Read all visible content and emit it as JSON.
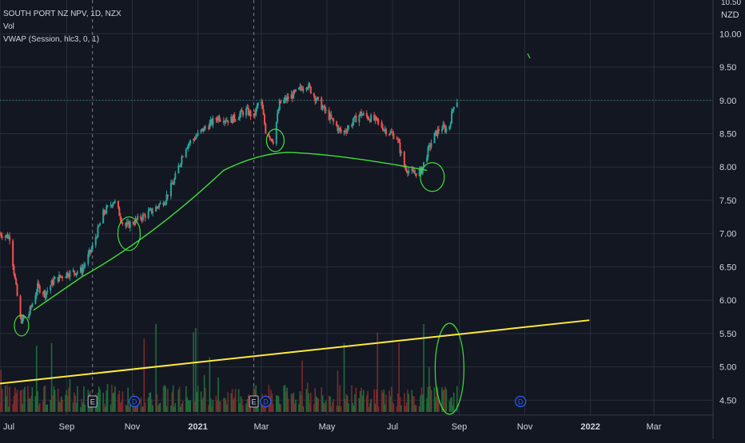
{
  "legend": {
    "symbol_line": "SOUTH PORT NZ NPV, 1D, NZX",
    "vol_label": "Vol",
    "vwap_label": "VWAP (Session, hlc3, 0, 1)"
  },
  "currency_label": "NZD",
  "currency_top_clip": "10.50",
  "colors": {
    "background": "#131722",
    "grid": "#2a2e39",
    "up": "#26a69a",
    "down": "#ef5350",
    "vol_up": "#1e6b3a",
    "vol_down": "#7a2a2a",
    "drawing": "#3fe03a",
    "trendline": "#ffeb3b",
    "text": "#d1d4dc",
    "price_line": "#26a69a",
    "dividend_badge": "#2962ff"
  },
  "chart_data": {
    "type": "candlestick",
    "y_ticks": [
      "10.00",
      "9.50",
      "9.00",
      "8.50",
      "8.00",
      "7.50",
      "7.00",
      "6.50",
      "6.00",
      "5.50",
      "5.00",
      "4.50"
    ],
    "ylim": [
      4.45,
      10.5
    ],
    "x_ticks": [
      "Jul",
      "Sep",
      "Nov",
      "2021",
      "Mar",
      "May",
      "Jul",
      "Sep",
      "Nov",
      "2022",
      "Mar"
    ],
    "bold_ticks": [
      "2021",
      "2022"
    ],
    "price_anchors": [
      [
        "2020-07-01",
        7.0
      ],
      [
        "2020-07-10",
        6.95
      ],
      [
        "2020-07-15",
        6.3
      ],
      [
        "2020-07-20",
        5.7
      ],
      [
        "2020-07-27",
        5.75
      ],
      [
        "2020-08-05",
        6.2
      ],
      [
        "2020-08-12",
        6.1
      ],
      [
        "2020-08-20",
        6.3
      ],
      [
        "2020-09-01",
        6.4
      ],
      [
        "2020-09-15",
        6.45
      ],
      [
        "2020-09-25",
        6.8
      ],
      [
        "2020-10-05",
        7.3
      ],
      [
        "2020-10-15",
        7.5
      ],
      [
        "2020-10-25",
        7.1
      ],
      [
        "2020-11-05",
        7.2
      ],
      [
        "2020-11-20",
        7.35
      ],
      [
        "2020-12-01",
        7.5
      ],
      [
        "2020-12-10",
        7.8
      ],
      [
        "2020-12-20",
        8.3
      ],
      [
        "2021-01-05",
        8.55
      ],
      [
        "2021-01-20",
        8.75
      ],
      [
        "2021-01-31",
        8.7
      ],
      [
        "2021-02-15",
        8.85
      ],
      [
        "2021-02-22",
        8.75
      ],
      [
        "2021-02-28",
        9.05
      ],
      [
        "2021-03-05",
        8.55
      ],
      [
        "2021-03-12",
        8.4
      ],
      [
        "2021-03-18",
        8.95
      ],
      [
        "2021-04-01",
        9.1
      ],
      [
        "2021-04-12",
        9.25
      ],
      [
        "2021-04-20",
        9.05
      ],
      [
        "2021-05-01",
        8.8
      ],
      [
        "2021-05-15",
        8.5
      ],
      [
        "2021-06-01",
        8.8
      ],
      [
        "2021-06-15",
        8.7
      ],
      [
        "2021-06-25",
        8.55
      ],
      [
        "2021-07-05",
        8.45
      ],
      [
        "2021-07-12",
        8.0
      ],
      [
        "2021-07-20",
        7.9
      ],
      [
        "2021-07-28",
        7.95
      ],
      [
        "2021-08-02",
        8.2
      ],
      [
        "2021-08-08",
        8.45
      ],
      [
        "2021-08-15",
        8.6
      ],
      [
        "2021-08-22",
        8.55
      ],
      [
        "2021-08-27",
        8.95
      ],
      [
        "2021-08-30",
        9.0
      ]
    ],
    "last_price": 9.0,
    "volume_note": "relative daily volume bars along the bottom of the pane",
    "event_markers": [
      {
        "date": "2020-09-25",
        "label": "E",
        "kind": "earnings"
      },
      {
        "date": "2020-11-03",
        "label": "D",
        "kind": "dividend"
      },
      {
        "date": "2021-02-22",
        "label": "E",
        "kind": "earnings"
      },
      {
        "date": "2021-03-05",
        "label": "D",
        "kind": "dividend"
      },
      {
        "date": "2021-10-28",
        "label": "D",
        "kind": "dividend"
      }
    ],
    "session_separators": [
      "2020-09-25",
      "2021-02-22"
    ],
    "drawings": {
      "trendline": [
        [
          "2020-07-01",
          4.75
        ],
        [
          "2021-12-31",
          5.7
        ]
      ]
    },
    "grid": true
  }
}
